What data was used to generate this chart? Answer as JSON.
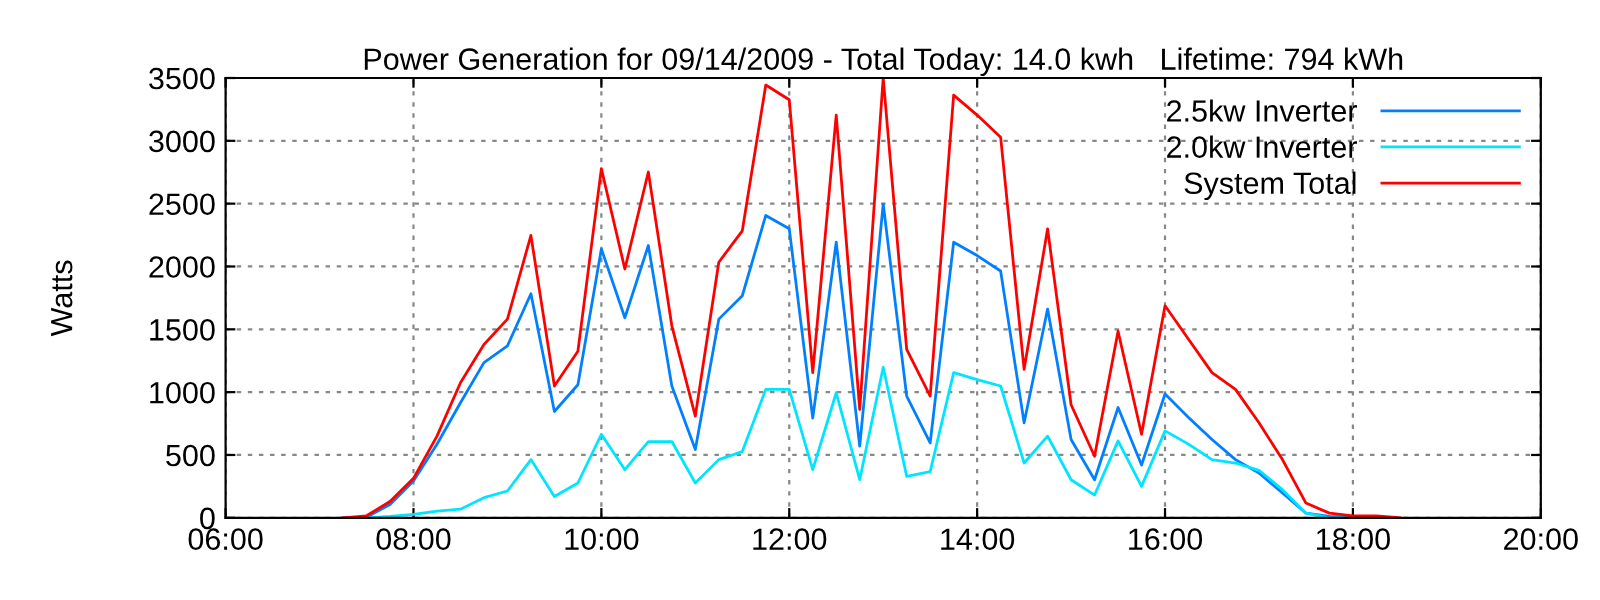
{
  "chart_data": {
    "type": "line",
    "title": "Power Generation for 09/14/2009 - Total Today: 14.0 kwh   Lifetime: 794 kWh",
    "ylabel": "Watts",
    "x": [
      7.25,
      7.5,
      7.75,
      8,
      8.25,
      8.5,
      8.75,
      9,
      9.25,
      9.5,
      9.75,
      10,
      10.25,
      10.5,
      10.75,
      11,
      11.25,
      11.5,
      11.75,
      12,
      12.25,
      12.5,
      12.75,
      13,
      13.25,
      13.5,
      13.75,
      14,
      14.25,
      14.5,
      14.75,
      15,
      15.25,
      15.5,
      15.75,
      16,
      16.25,
      16.5,
      16.75,
      17,
      17.25,
      17.5,
      17.75,
      18,
      18.25,
      18.5
    ],
    "series": [
      {
        "name": "2.5kw Inverter",
        "color": "#0080ff",
        "values": [
          0,
          5,
          106,
          293,
          585,
          916,
          1235,
          1368,
          1783,
          846,
          1059,
          2140,
          1592,
          2167,
          1049,
          543,
          1581,
          1767,
          2406,
          2300,
          793,
          2193,
          570,
          2497,
          969,
          596,
          2193,
          2087,
          1964,
          756,
          1661,
          623,
          303,
          878,
          420,
          985,
          799,
          623,
          463,
          356,
          197,
          37,
          11,
          5,
          0,
          null
        ]
      },
      {
        "name": "2.0kw Inverter",
        "color": "#00e5ff",
        "values": [
          null,
          0,
          11,
          27,
          53,
          69,
          160,
          213,
          463,
          170,
          277,
          665,
          383,
          607,
          607,
          277,
          463,
          527,
          1022,
          1022,
          383,
          995,
          303,
          1198,
          330,
          367,
          1155,
          1100,
          1049,
          436,
          650,
          303,
          181,
          612,
          250,
          692,
          586,
          463,
          436,
          378,
          224,
          37,
          0,
          0,
          null,
          null
        ]
      },
      {
        "name": "System Total",
        "color": "#ff0000",
        "values": [
          0,
          16,
          130,
          314,
          650,
          1075,
          1379,
          1581,
          2247,
          1049,
          1325,
          2779,
          1980,
          2752,
          1528,
          809,
          2034,
          2284,
          3444,
          3327,
          1155,
          3205,
          862,
          3500,
          1341,
          969,
          3364,
          3205,
          3029,
          1182,
          2300,
          900,
          490,
          1485,
          665,
          1687,
          1421,
          1155,
          1022,
          756,
          463,
          117,
          37,
          16,
          16,
          0
        ]
      }
    ],
    "xlim": [
      6,
      20
    ],
    "xticks": [
      {
        "value": 6,
        "label": "06:00"
      },
      {
        "value": 8,
        "label": "08:00"
      },
      {
        "value": 10,
        "label": "10:00"
      },
      {
        "value": 12,
        "label": "12:00"
      },
      {
        "value": 14,
        "label": "14:00"
      },
      {
        "value": 16,
        "label": "16:00"
      },
      {
        "value": 18,
        "label": "18:00"
      },
      {
        "value": 20,
        "label": "20:00"
      }
    ],
    "ylim": [
      0,
      3500
    ],
    "yticks": [
      0,
      500,
      1000,
      1500,
      2000,
      2500,
      3000,
      3500
    ],
    "grid": true,
    "legend": "top right",
    "marker": "none",
    "line_style": "solid"
  }
}
